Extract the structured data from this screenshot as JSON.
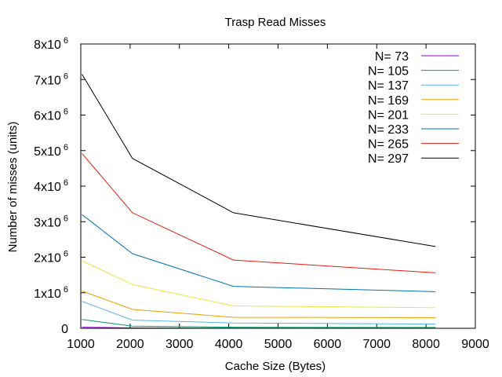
{
  "chart_data": {
    "type": "line",
    "title": "Trasp Read Misses",
    "xlabel": "Cache Size (Bytes)",
    "ylabel": "Number of misses (units)",
    "xlim": [
      1000,
      9000
    ],
    "ylim": [
      0,
      8000000
    ],
    "x_ticks": [
      1000,
      2000,
      3000,
      4000,
      5000,
      6000,
      7000,
      8000,
      9000
    ],
    "x_tick_labels": [
      "1000",
      "2000",
      "3000",
      "4000",
      "5000",
      "6000",
      "7000",
      "8000",
      "9000"
    ],
    "y_ticks": [
      {
        "value": 0,
        "base": "0",
        "exp": ""
      },
      {
        "value": 1000000,
        "base": "1x10",
        "exp": "6"
      },
      {
        "value": 2000000,
        "base": "2x10",
        "exp": "6"
      },
      {
        "value": 3000000,
        "base": "3x10",
        "exp": "6"
      },
      {
        "value": 4000000,
        "base": "4x10",
        "exp": "6"
      },
      {
        "value": 5000000,
        "base": "5x10",
        "exp": "6"
      },
      {
        "value": 6000000,
        "base": "6x10",
        "exp": "6"
      },
      {
        "value": 7000000,
        "base": "7x10",
        "exp": "6"
      },
      {
        "value": 8000000,
        "base": "8x10",
        "exp": "6"
      }
    ],
    "legend_position": "top-right",
    "grid": false,
    "x": [
      1024,
      2048,
      4096,
      8192
    ],
    "series": [
      {
        "name": "N= 73",
        "color": "#9400d3",
        "values": [
          30000,
          12000,
          5000,
          3000
        ]
      },
      {
        "name": "N= 105",
        "color": "#009e73",
        "values": [
          250000,
          60000,
          30000,
          25000
        ]
      },
      {
        "name": "N= 137",
        "color": "#56b4e9",
        "values": [
          760000,
          230000,
          150000,
          120000
        ]
      },
      {
        "name": "N= 169",
        "color": "#e69f00",
        "values": [
          1050000,
          530000,
          310000,
          300000
        ]
      },
      {
        "name": "N= 201",
        "color": "#f0e442",
        "values": [
          1900000,
          1230000,
          630000,
          580000
        ]
      },
      {
        "name": "N= 233",
        "color": "#0072b2",
        "values": [
          3200000,
          2100000,
          1180000,
          1030000
        ]
      },
      {
        "name": "N= 265",
        "color": "#e51e10",
        "values": [
          4920000,
          3250000,
          1920000,
          1560000
        ]
      },
      {
        "name": "N= 297",
        "color": "#000000",
        "values": [
          7150000,
          4780000,
          3250000,
          2300000
        ]
      }
    ]
  }
}
